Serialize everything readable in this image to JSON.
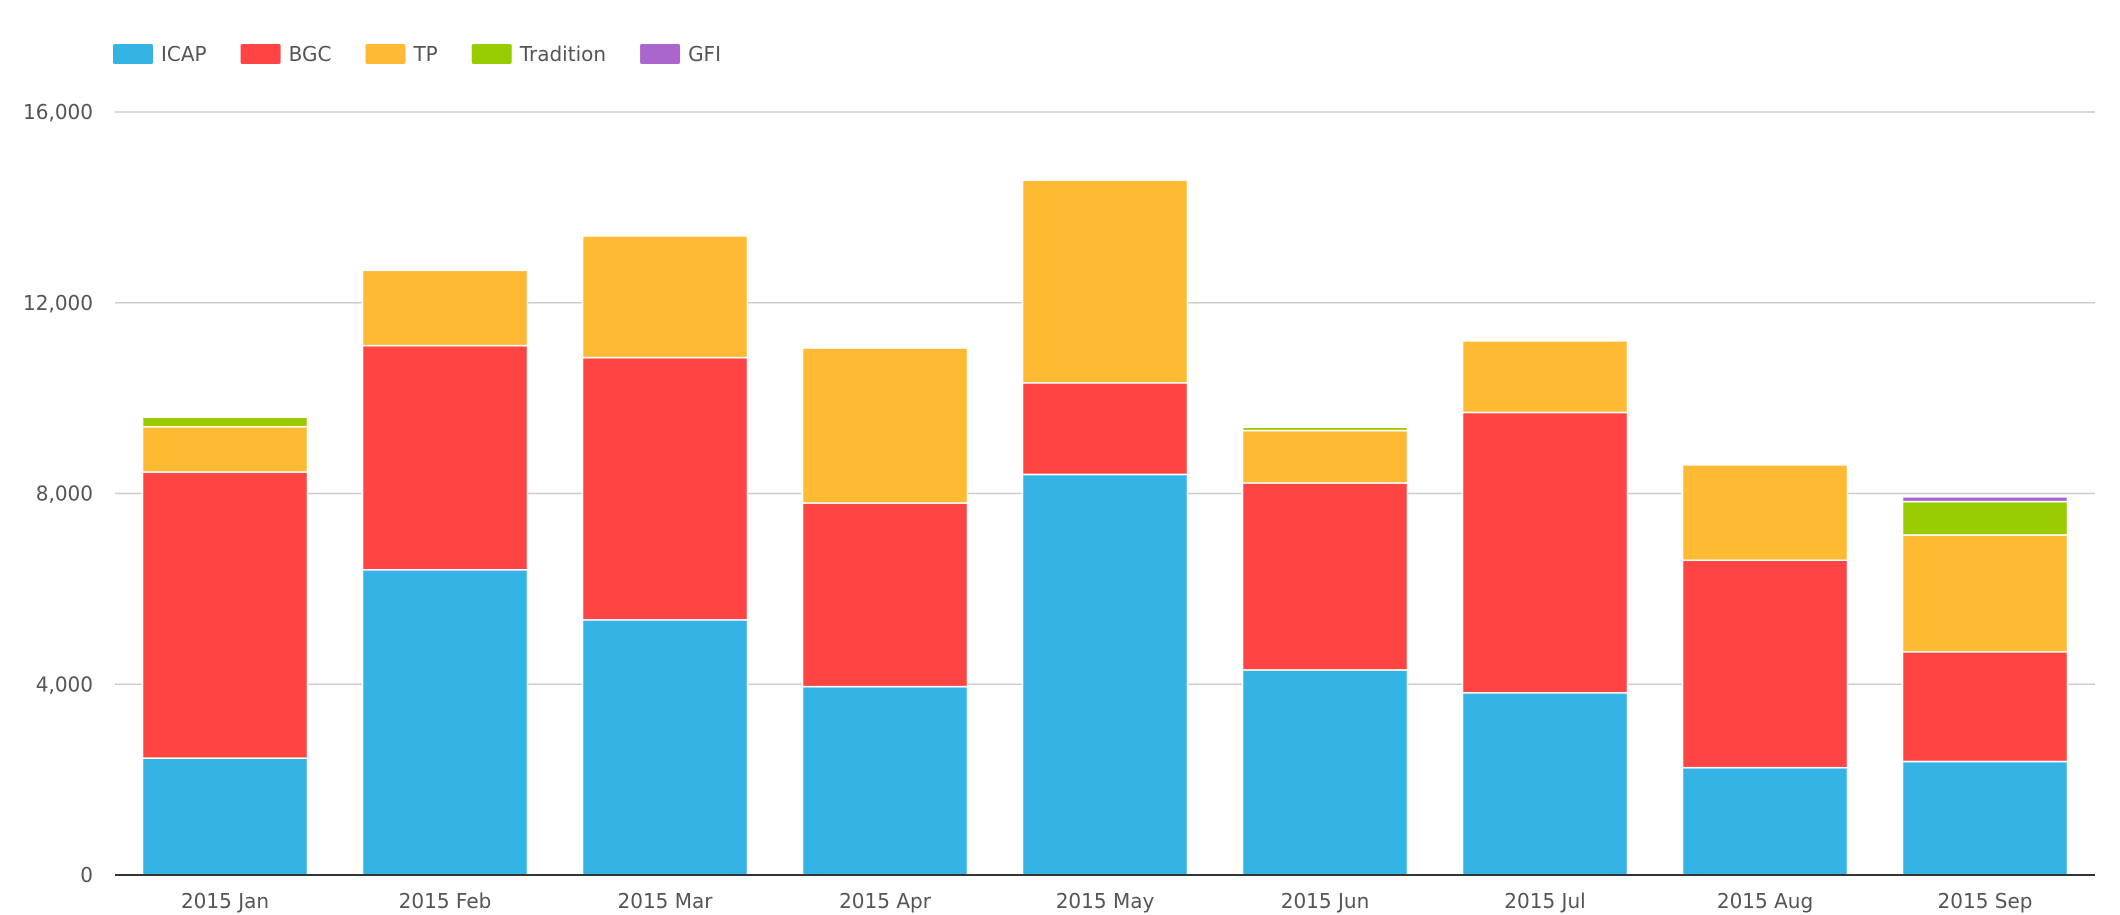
{
  "chart_data": {
    "type": "bar",
    "stacked": true,
    "title": "",
    "xlabel": "",
    "ylabel": "",
    "ylim": [
      0,
      16000
    ],
    "yticks": [
      0,
      4000,
      8000,
      12000,
      16000
    ],
    "ytick_labels": [
      "0",
      "4,000",
      "8,000",
      "12,000",
      "16,000"
    ],
    "grid": true,
    "legend_position": "top-left",
    "categories": [
      "2015 Jan",
      "2015 Feb",
      "2015 Mar",
      "2015 Apr",
      "2015 May",
      "2015 Jun",
      "2015 Jul",
      "2015 Aug",
      "2015 Sep"
    ],
    "series": [
      {
        "name": "ICAP",
        "color": "#33b4e5",
        "values": [
          2450,
          6400,
          5350,
          3950,
          8400,
          4300,
          3820,
          2250,
          2380
        ]
      },
      {
        "name": "BGC",
        "color": "#ff4444",
        "values": [
          6000,
          4700,
          5500,
          3850,
          1920,
          3920,
          5880,
          4350,
          2300
        ]
      },
      {
        "name": "TP",
        "color": "#ffba33",
        "values": [
          950,
          1580,
          2550,
          3250,
          4250,
          1100,
          1500,
          2000,
          2450
        ]
      },
      {
        "name": "Tradition",
        "color": "#99cc00",
        "values": [
          200,
          0,
          0,
          0,
          0,
          70,
          0,
          0,
          700
        ]
      },
      {
        "name": "GFI",
        "color": "#aa66cc",
        "values": [
          0,
          0,
          0,
          0,
          0,
          0,
          0,
          0,
          100
        ]
      }
    ]
  }
}
